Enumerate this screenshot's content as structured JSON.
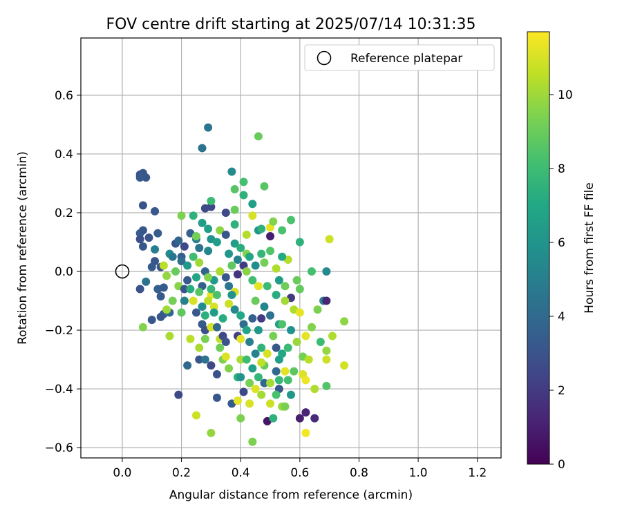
{
  "chart_data": {
    "type": "scatter",
    "title": "FOV centre drift starting at 2025/07/14 10:31:35",
    "xlabel": "Angular distance from reference (arcmin)",
    "ylabel": "Rotation from reference (arcmin)",
    "xlim": [
      -0.14,
      1.28
    ],
    "ylim": [
      -0.635,
      0.795
    ],
    "xticks": [
      "0.0",
      "0.2",
      "0.4",
      "0.6",
      "0.8",
      "1.0",
      "1.2"
    ],
    "xtick_values": [
      0.0,
      0.2,
      0.4,
      0.6,
      0.8,
      1.0,
      1.2
    ],
    "yticks": [
      "0.6",
      "0.4",
      "0.2",
      "0.0",
      "−0.2",
      "−0.4",
      "−0.6"
    ],
    "ytick_values": [
      0.6,
      0.4,
      0.2,
      0.0,
      -0.2,
      -0.4,
      -0.6
    ],
    "grid": true,
    "legend": {
      "placement": "top-right",
      "entries": [
        "Reference platepar"
      ]
    },
    "reference_point": {
      "x": 0.0,
      "y": 0.0
    },
    "colorbar": {
      "label": "Hours from first FF file",
      "colormap": "viridis",
      "range": [
        0,
        11.7
      ],
      "ticks": [
        "0",
        "2",
        "4",
        "6",
        "8",
        "10"
      ],
      "tick_values": [
        0,
        2,
        4,
        6,
        8,
        10
      ]
    },
    "points": [
      [
        0.06,
        0.33,
        3.0
      ],
      [
        0.07,
        0.335,
        3.2
      ],
      [
        0.08,
        0.32,
        3.1
      ],
      [
        0.06,
        0.32,
        3.3
      ],
      [
        0.07,
        0.225,
        3.0
      ],
      [
        0.11,
        0.205,
        3.2
      ],
      [
        0.06,
        0.13,
        3.5
      ],
      [
        0.07,
        0.14,
        3.1
      ],
      [
        0.09,
        0.115,
        3.0
      ],
      [
        0.06,
        0.11,
        2.9
      ],
      [
        0.07,
        0.085,
        3.2
      ],
      [
        0.12,
        0.13,
        3.4
      ],
      [
        0.11,
        0.075,
        5.0
      ],
      [
        0.11,
        0.035,
        3.1
      ],
      [
        0.1,
        0.015,
        3.3
      ],
      [
        0.13,
        0.015,
        3.0
      ],
      [
        0.06,
        -0.06,
        3.0
      ],
      [
        0.08,
        -0.035,
        4.5
      ],
      [
        0.1,
        -0.165,
        3.2
      ],
      [
        0.07,
        -0.19,
        9.5
      ],
      [
        0.12,
        -0.06,
        3.5
      ],
      [
        0.13,
        -0.085,
        3.3
      ],
      [
        0.14,
        -0.145,
        3.6
      ],
      [
        0.13,
        -0.155,
        3.2
      ],
      [
        0.16,
        -0.14,
        4.0
      ],
      [
        0.14,
        -0.055,
        3.4
      ],
      [
        0.14,
        0.02,
        10.5
      ],
      [
        0.15,
        -0.015,
        9.8
      ],
      [
        0.16,
        0.06,
        5.5
      ],
      [
        0.17,
        0.05,
        4.6
      ],
      [
        0.18,
        0.0,
        9.0
      ],
      [
        0.17,
        -0.1,
        9.2
      ],
      [
        0.15,
        -0.13,
        10.0
      ],
      [
        0.16,
        -0.22,
        10.2
      ],
      [
        0.19,
        -0.42,
        2.6
      ],
      [
        0.18,
        0.095,
        3.0
      ],
      [
        0.19,
        0.105,
        3.8
      ],
      [
        0.2,
        0.05,
        3.5
      ],
      [
        0.21,
        0.085,
        2.5
      ],
      [
        0.2,
        0.035,
        4.2
      ],
      [
        0.19,
        -0.05,
        9.6
      ],
      [
        0.2,
        -0.14,
        8.8
      ],
      [
        0.2,
        0.19,
        9.4
      ],
      [
        0.21,
        -0.06,
        3.0
      ],
      [
        0.22,
        -0.03,
        3.3
      ],
      [
        0.23,
        0.13,
        3.6
      ],
      [
        0.22,
        -0.32,
        4.0
      ],
      [
        0.23,
        -0.23,
        10.5
      ],
      [
        0.24,
        -0.1,
        11.0
      ],
      [
        0.25,
        -0.49,
        10.8
      ],
      [
        0.24,
        0.19,
        7.5
      ],
      [
        0.25,
        0.11,
        5.0
      ],
      [
        0.26,
        0.08,
        4.5
      ],
      [
        0.25,
        -0.14,
        3.2
      ],
      [
        0.26,
        -0.26,
        10.2
      ],
      [
        0.27,
        -0.18,
        3.3
      ],
      [
        0.27,
        0.42,
        4.4
      ],
      [
        0.28,
        0.215,
        2.5
      ],
      [
        0.27,
        0.165,
        6.5
      ],
      [
        0.26,
        0.03,
        10.0
      ],
      [
        0.28,
        0.0,
        3.8
      ],
      [
        0.27,
        -0.05,
        3.5
      ],
      [
        0.26,
        -0.3,
        3.1
      ],
      [
        0.28,
        -0.3,
        4.4
      ],
      [
        0.28,
        -0.2,
        2.8
      ],
      [
        0.28,
        -0.23,
        9.3
      ],
      [
        0.29,
        0.49,
        4.6
      ],
      [
        0.29,
        0.145,
        6.6
      ],
      [
        0.3,
        0.22,
        2.5
      ],
      [
        0.3,
        0.24,
        8.0
      ],
      [
        0.3,
        0.11,
        6.0
      ],
      [
        0.29,
        0.07,
        5.4
      ],
      [
        0.3,
        -0.08,
        11.2
      ],
      [
        0.29,
        -0.1,
        10.5
      ],
      [
        0.3,
        -0.19,
        11.0
      ],
      [
        0.3,
        -0.32,
        2.6
      ],
      [
        0.3,
        -0.55,
        9.8
      ],
      [
        0.31,
        -0.03,
        6.3
      ],
      [
        0.31,
        -0.12,
        11.0
      ],
      [
        0.32,
        -0.19,
        4.0
      ],
      [
        0.32,
        -0.35,
        3.0
      ],
      [
        0.32,
        -0.43,
        3.2
      ],
      [
        0.32,
        0.1,
        6.5
      ],
      [
        0.33,
        0.14,
        9.7
      ],
      [
        0.33,
        0.0,
        10.2
      ],
      [
        0.33,
        -0.23,
        10.6
      ],
      [
        0.34,
        -0.22,
        2.5
      ],
      [
        0.34,
        -0.3,
        9.4
      ],
      [
        0.35,
        0.125,
        3.1
      ],
      [
        0.35,
        0.2,
        2.5
      ],
      [
        0.35,
        -0.24,
        3.0
      ],
      [
        0.35,
        -0.29,
        11.1
      ],
      [
        0.36,
        -0.33,
        9.5
      ],
      [
        0.36,
        -0.11,
        10.8
      ],
      [
        0.37,
        -0.45,
        3.3
      ],
      [
        0.37,
        0.34,
        5.5
      ],
      [
        0.38,
        0.28,
        8.6
      ],
      [
        0.38,
        0.21,
        9.0
      ],
      [
        0.38,
        0.16,
        7.5
      ],
      [
        0.38,
        0.095,
        6.5
      ],
      [
        0.39,
        -0.01,
        1.8
      ],
      [
        0.38,
        -0.07,
        11.0
      ],
      [
        0.39,
        -0.22,
        2.2
      ],
      [
        0.39,
        -0.36,
        7.5
      ],
      [
        0.39,
        -0.44,
        11.2
      ],
      [
        0.4,
        -0.5,
        9.4
      ],
      [
        0.4,
        -0.3,
        10.2
      ],
      [
        0.4,
        -0.23,
        11.2
      ],
      [
        0.41,
        0.305,
        8.2
      ],
      [
        0.41,
        0.26,
        7.5
      ],
      [
        0.41,
        0.02,
        2.0
      ],
      [
        0.41,
        -0.41,
        2.6
      ],
      [
        0.42,
        0.125,
        10.4
      ],
      [
        0.42,
        0.06,
        9.5
      ],
      [
        0.43,
        -0.38,
        9.3
      ],
      [
        0.43,
        -0.45,
        11.0
      ],
      [
        0.44,
        0.23,
        6.6
      ],
      [
        0.44,
        0.19,
        11.0
      ],
      [
        0.44,
        -0.58,
        9.4
      ],
      [
        0.45,
        -0.4,
        11.1
      ],
      [
        0.46,
        0.46,
        9.0
      ],
      [
        0.46,
        0.14,
        6.0
      ],
      [
        0.46,
        -0.05,
        11.2
      ],
      [
        0.47,
        0.145,
        7.5
      ],
      [
        0.47,
        -0.16,
        2.1
      ],
      [
        0.48,
        0.29,
        8.6
      ],
      [
        0.47,
        -0.42,
        10.1
      ],
      [
        0.48,
        -0.38,
        4.0
      ],
      [
        0.49,
        -0.51,
        0.7
      ],
      [
        0.49,
        -0.28,
        11.0
      ],
      [
        0.5,
        0.12,
        1.0
      ],
      [
        0.5,
        0.15,
        11.2
      ],
      [
        0.5,
        -0.45,
        10.8
      ],
      [
        0.51,
        -0.5,
        7.5
      ],
      [
        0.51,
        0.17,
        9.5
      ],
      [
        0.52,
        -0.26,
        3.2
      ],
      [
        0.52,
        -0.34,
        4.0
      ],
      [
        0.53,
        -0.37,
        7.8
      ],
      [
        0.53,
        -0.4,
        3.2
      ],
      [
        0.53,
        -0.18,
        6.5
      ],
      [
        0.54,
        0.14,
        8.3
      ],
      [
        0.54,
        -0.46,
        10.0
      ],
      [
        0.55,
        -0.46,
        9.3
      ],
      [
        0.55,
        -0.34,
        11.2
      ],
      [
        0.56,
        -0.37,
        8.2
      ],
      [
        0.56,
        0.04,
        10.4
      ],
      [
        0.57,
        0.175,
        8.3
      ],
      [
        0.57,
        -0.42,
        6.2
      ],
      [
        0.57,
        -0.09,
        2.0
      ],
      [
        0.58,
        -0.13,
        10.3
      ],
      [
        0.59,
        -0.03,
        9.0
      ],
      [
        0.6,
        -0.5,
        1.0
      ],
      [
        0.6,
        -0.14,
        11.3
      ],
      [
        0.6,
        0.1,
        7.5
      ],
      [
        0.61,
        -0.29,
        9.2
      ],
      [
        0.61,
        -0.35,
        11.1
      ],
      [
        0.62,
        -0.37,
        11.4
      ],
      [
        0.62,
        -0.48,
        1.2
      ],
      [
        0.62,
        -0.55,
        11.5
      ],
      [
        0.62,
        -0.22,
        11.2
      ],
      [
        0.63,
        -0.3,
        10.5
      ],
      [
        0.64,
        0.0,
        8.2
      ],
      [
        0.64,
        -0.19,
        9.5
      ],
      [
        0.65,
        -0.5,
        1.4
      ],
      [
        0.65,
        -0.4,
        10.3
      ],
      [
        0.66,
        -0.13,
        9.4
      ],
      [
        0.67,
        -0.24,
        8.0
      ],
      [
        0.68,
        -0.1,
        5.0
      ],
      [
        0.69,
        -0.1,
        1.2
      ],
      [
        0.69,
        -0.3,
        10.8
      ],
      [
        0.69,
        -0.27,
        9.8
      ],
      [
        0.69,
        -0.39,
        8.5
      ],
      [
        0.69,
        0.0,
        5.5
      ],
      [
        0.7,
        0.11,
        10.8
      ],
      [
        0.71,
        -0.22,
        10.3
      ],
      [
        0.75,
        -0.17,
        9.7
      ],
      [
        0.75,
        -0.32,
        10.9
      ],
      [
        0.35,
        -0.02,
        3.2
      ],
      [
        0.36,
        -0.05,
        4.6
      ],
      [
        0.37,
        -0.08,
        6.0
      ],
      [
        0.38,
        -0.13,
        5.5
      ],
      [
        0.4,
        -0.15,
        7.0
      ],
      [
        0.41,
        -0.18,
        4.2
      ],
      [
        0.42,
        -0.2,
        6.8
      ],
      [
        0.43,
        -0.24,
        5.0
      ],
      [
        0.44,
        -0.16,
        3.6
      ],
      [
        0.45,
        -0.1,
        9.0
      ],
      [
        0.46,
        -0.2,
        6.2
      ],
      [
        0.47,
        -0.26,
        7.6
      ],
      [
        0.48,
        -0.12,
        5.3
      ],
      [
        0.49,
        -0.05,
        8.0
      ],
      [
        0.5,
        -0.15,
        4.4
      ],
      [
        0.51,
        -0.22,
        9.3
      ],
      [
        0.52,
        -0.08,
        7.2
      ],
      [
        0.53,
        -0.3,
        6.6
      ],
      [
        0.54,
        -0.18,
        8.4
      ],
      [
        0.55,
        -0.1,
        10.1
      ],
      [
        0.56,
        -0.26,
        7.9
      ],
      [
        0.57,
        -0.2,
        5.9
      ],
      [
        0.58,
        -0.34,
        8.7
      ],
      [
        0.59,
        -0.24,
        9.9
      ],
      [
        0.6,
        -0.06,
        8.9
      ],
      [
        0.36,
        0.06,
        6.1
      ],
      [
        0.37,
        0.02,
        8.8
      ],
      [
        0.39,
        0.04,
        5.2
      ],
      [
        0.4,
        0.08,
        7.3
      ],
      [
        0.42,
        0.0,
        9.6
      ],
      [
        0.43,
        0.05,
        6.9
      ],
      [
        0.44,
        -0.03,
        8.1
      ],
      [
        0.45,
        0.02,
        5.7
      ],
      [
        0.47,
        0.06,
        7.7
      ],
      [
        0.48,
        0.03,
        9.2
      ],
      [
        0.5,
        0.07,
        8.5
      ],
      [
        0.52,
        0.01,
        10.3
      ],
      [
        0.53,
        -0.03,
        6.4
      ],
      [
        0.54,
        0.05,
        7.1
      ],
      [
        0.55,
        -0.05,
        9.1
      ],
      [
        0.3,
        -0.06,
        7.8
      ],
      [
        0.31,
        -0.14,
        6.4
      ],
      [
        0.32,
        -0.08,
        8.3
      ],
      [
        0.33,
        -0.26,
        9.1
      ],
      [
        0.34,
        -0.16,
        7.2
      ],
      [
        0.25,
        -0.02,
        6.9
      ],
      [
        0.26,
        -0.07,
        8.6
      ],
      [
        0.27,
        -0.12,
        5.6
      ],
      [
        0.28,
        -0.15,
        7.4
      ],
      [
        0.29,
        -0.02,
        9.5
      ],
      [
        0.22,
        0.02,
        6.2
      ],
      [
        0.23,
        -0.06,
        7.3
      ],
      [
        0.24,
        0.05,
        8.1
      ],
      [
        0.25,
        0.12,
        9.2
      ],
      [
        0.21,
        -0.1,
        5.1
      ],
      [
        0.42,
        -0.3,
        8.0
      ],
      [
        0.44,
        -0.33,
        6.6
      ],
      [
        0.46,
        -0.36,
        7.7
      ],
      [
        0.48,
        -0.32,
        9.0
      ],
      [
        0.5,
        -0.38,
        10.1
      ],
      [
        0.52,
        -0.42,
        8.3
      ],
      [
        0.54,
        -0.28,
        7.0
      ],
      [
        0.45,
        -0.28,
        5.2
      ],
      [
        0.47,
        -0.31,
        10.6
      ],
      [
        0.4,
        -0.36,
        6.0
      ]
    ]
  }
}
